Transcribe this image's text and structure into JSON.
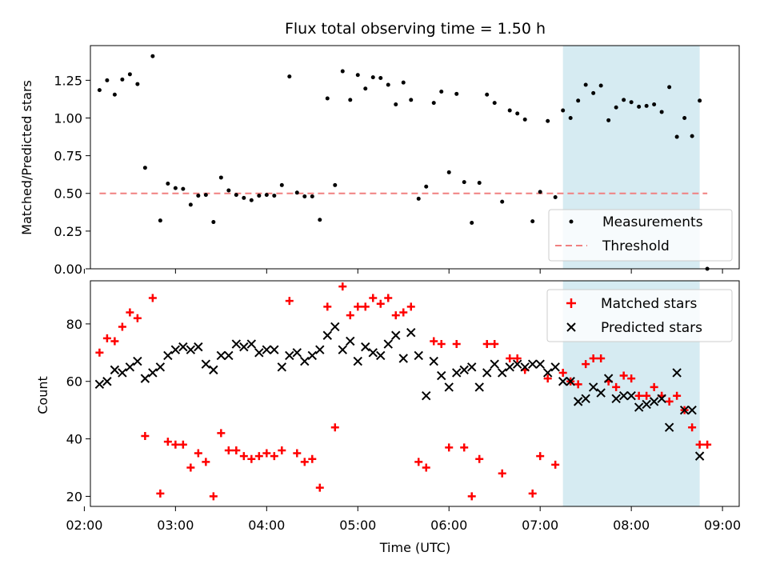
{
  "chart_data": [
    {
      "type": "scatter",
      "title": "Flux total observing time = 1.50 h",
      "xlabel": "",
      "ylabel": "Matched/Predicted stars",
      "xlim": [
        "02:04",
        "09:11"
      ],
      "ylim": [
        0.0,
        1.48
      ],
      "x_tick_labels": [
        "02:00",
        "03:00",
        "04:00",
        "05:00",
        "06:00",
        "07:00",
        "08:00",
        "09:00"
      ],
      "y_ticks": [
        0.0,
        0.25,
        0.5,
        0.75,
        1.0,
        1.25
      ],
      "y_tick_labels": [
        "0.00",
        "0.25",
        "0.50",
        "0.75",
        "1.00",
        "1.25"
      ],
      "shaded_span": [
        "07:15",
        "08:45"
      ],
      "legend": {
        "placement": "lower right",
        "entries": [
          "Measurements",
          "Threshold"
        ]
      },
      "series": [
        {
          "name": "Measurements",
          "marker": "dot",
          "color": "#000000",
          "points": [
            [
              "02:10",
              1.185
            ],
            [
              "02:15",
              1.25
            ],
            [
              "02:20",
              1.155
            ],
            [
              "02:25",
              1.255
            ],
            [
              "02:30",
              1.29
            ],
            [
              "02:35",
              1.225
            ],
            [
              "02:40",
              0.67
            ],
            [
              "02:45",
              1.41
            ],
            [
              "02:50",
              0.32
            ],
            [
              "02:55",
              0.565
            ],
            [
              "03:00",
              0.535
            ],
            [
              "03:05",
              0.53
            ],
            [
              "03:10",
              0.425
            ],
            [
              "03:15",
              0.485
            ],
            [
              "03:20",
              0.49
            ],
            [
              "03:25",
              0.31
            ],
            [
              "03:30",
              0.605
            ],
            [
              "03:35",
              0.52
            ],
            [
              "03:40",
              0.49
            ],
            [
              "03:45",
              0.47
            ],
            [
              "03:50",
              0.455
            ],
            [
              "03:55",
              0.485
            ],
            [
              "04:00",
              0.49
            ],
            [
              "04:05",
              0.485
            ],
            [
              "04:10",
              0.555
            ],
            [
              "04:15",
              1.275
            ],
            [
              "04:20",
              0.505
            ],
            [
              "04:25",
              0.48
            ],
            [
              "04:30",
              0.48
            ],
            [
              "04:35",
              0.325
            ],
            [
              "04:40",
              1.13
            ],
            [
              "04:45",
              0.555
            ],
            [
              "04:50",
              1.31
            ],
            [
              "04:55",
              1.12
            ],
            [
              "05:00",
              1.285
            ],
            [
              "05:05",
              1.195
            ],
            [
              "05:10",
              1.27
            ],
            [
              "05:15",
              1.265
            ],
            [
              "05:20",
              1.22
            ],
            [
              "05:25",
              1.09
            ],
            [
              "05:30",
              1.235
            ],
            [
              "05:35",
              1.12
            ],
            [
              "05:40",
              0.465
            ],
            [
              "05:45",
              0.545
            ],
            [
              "05:50",
              1.1
            ],
            [
              "05:55",
              1.175
            ],
            [
              "06:00",
              0.64
            ],
            [
              "06:05",
              1.16
            ],
            [
              "06:10",
              0.575
            ],
            [
              "06:15",
              0.305
            ],
            [
              "06:20",
              0.57
            ],
            [
              "06:25",
              1.155
            ],
            [
              "06:30",
              1.1
            ],
            [
              "06:35",
              0.445
            ],
            [
              "06:40",
              1.05
            ],
            [
              "06:45",
              1.03
            ],
            [
              "06:50",
              0.99
            ],
            [
              "06:55",
              0.315
            ],
            [
              "07:00",
              0.51
            ],
            [
              "07:05",
              0.98
            ],
            [
              "07:10",
              0.475
            ],
            [
              "07:15",
              1.05
            ],
            [
              "07:20",
              1.0
            ],
            [
              "07:25",
              1.115
            ],
            [
              "07:30",
              1.22
            ],
            [
              "07:35",
              1.165
            ],
            [
              "07:40",
              1.215
            ],
            [
              "07:45",
              0.985
            ],
            [
              "07:50",
              1.07
            ],
            [
              "07:55",
              1.12
            ],
            [
              "08:00",
              1.105
            ],
            [
              "08:05",
              1.075
            ],
            [
              "08:10",
              1.08
            ],
            [
              "08:15",
              1.09
            ],
            [
              "08:20",
              1.04
            ],
            [
              "08:25",
              1.205
            ],
            [
              "08:30",
              0.875
            ],
            [
              "08:35",
              1.0
            ],
            [
              "08:40",
              0.88
            ],
            [
              "08:45",
              1.115
            ],
            [
              "08:50",
              0.0
            ]
          ]
        },
        {
          "name": "Threshold",
          "line_style": "dashed",
          "color": "#f08080",
          "points": [
            [
              "02:10",
              0.5
            ],
            [
              "08:50",
              0.5
            ]
          ]
        }
      ]
    },
    {
      "type": "scatter",
      "title": "",
      "xlabel": "Time (UTC)",
      "ylabel": "Count",
      "xlim": [
        "02:04",
        "09:11"
      ],
      "ylim": [
        16.5,
        95
      ],
      "x_tick_labels": [
        "02:00",
        "03:00",
        "04:00",
        "05:00",
        "06:00",
        "07:00",
        "08:00",
        "09:00"
      ],
      "y_ticks": [
        20,
        40,
        60,
        80
      ],
      "y_tick_labels": [
        "20",
        "40",
        "60",
        "80"
      ],
      "shaded_span": [
        "07:15",
        "08:45"
      ],
      "legend": {
        "placement": "upper right",
        "entries": [
          "Matched stars",
          "Predicted stars"
        ]
      },
      "series": [
        {
          "name": "Matched stars",
          "marker": "plus",
          "color": "#ff0000",
          "points": [
            [
              "02:10",
              70
            ],
            [
              "02:15",
              75
            ],
            [
              "02:20",
              74
            ],
            [
              "02:25",
              79
            ],
            [
              "02:30",
              84
            ],
            [
              "02:35",
              82
            ],
            [
              "02:40",
              41
            ],
            [
              "02:45",
              89
            ],
            [
              "02:50",
              21
            ],
            [
              "02:55",
              39
            ],
            [
              "03:00",
              38
            ],
            [
              "03:05",
              38
            ],
            [
              "03:10",
              30
            ],
            [
              "03:15",
              35
            ],
            [
              "03:20",
              32
            ],
            [
              "03:25",
              20
            ],
            [
              "03:30",
              42
            ],
            [
              "03:35",
              36
            ],
            [
              "03:40",
              36
            ],
            [
              "03:45",
              34
            ],
            [
              "03:50",
              33
            ],
            [
              "03:55",
              34
            ],
            [
              "04:00",
              35
            ],
            [
              "04:05",
              34
            ],
            [
              "04:10",
              36
            ],
            [
              "04:15",
              88
            ],
            [
              "04:20",
              35
            ],
            [
              "04:25",
              32
            ],
            [
              "04:30",
              33
            ],
            [
              "04:35",
              23
            ],
            [
              "04:40",
              86
            ],
            [
              "04:45",
              44
            ],
            [
              "04:50",
              93
            ],
            [
              "04:55",
              83
            ],
            [
              "05:00",
              86
            ],
            [
              "05:05",
              86
            ],
            [
              "05:10",
              89
            ],
            [
              "05:15",
              87
            ],
            [
              "05:20",
              89
            ],
            [
              "05:25",
              83
            ],
            [
              "05:30",
              84
            ],
            [
              "05:35",
              86
            ],
            [
              "05:40",
              32
            ],
            [
              "05:45",
              30
            ],
            [
              "05:50",
              74
            ],
            [
              "05:55",
              73
            ],
            [
              "06:00",
              37
            ],
            [
              "06:05",
              73
            ],
            [
              "06:10",
              37
            ],
            [
              "06:15",
              20
            ],
            [
              "06:20",
              33
            ],
            [
              "06:25",
              73
            ],
            [
              "06:30",
              73
            ],
            [
              "06:35",
              28
            ],
            [
              "06:40",
              68
            ],
            [
              "06:45",
              68
            ],
            [
              "06:50",
              64
            ],
            [
              "06:55",
              21
            ],
            [
              "07:00",
              34
            ],
            [
              "07:05",
              61
            ],
            [
              "07:10",
              31
            ],
            [
              "07:15",
              63
            ],
            [
              "07:20",
              60
            ],
            [
              "07:25",
              59
            ],
            [
              "07:30",
              66
            ],
            [
              "07:35",
              68
            ],
            [
              "07:40",
              68
            ],
            [
              "07:45",
              60
            ],
            [
              "07:50",
              58
            ],
            [
              "07:55",
              62
            ],
            [
              "08:00",
              61
            ],
            [
              "08:05",
              55
            ],
            [
              "08:10",
              55
            ],
            [
              "08:15",
              58
            ],
            [
              "08:20",
              55
            ],
            [
              "08:25",
              53
            ],
            [
              "08:30",
              55
            ],
            [
              "08:35",
              50
            ],
            [
              "08:40",
              44
            ],
            [
              "08:45",
              38
            ],
            [
              "08:50",
              38
            ]
          ]
        },
        {
          "name": "Predicted stars",
          "marker": "x",
          "color": "#000000",
          "points": [
            [
              "02:10",
              59
            ],
            [
              "02:15",
              60
            ],
            [
              "02:20",
              64
            ],
            [
              "02:25",
              63
            ],
            [
              "02:30",
              65
            ],
            [
              "02:35",
              67
            ],
            [
              "02:40",
              61
            ],
            [
              "02:45",
              63
            ],
            [
              "02:50",
              65
            ],
            [
              "02:55",
              69
            ],
            [
              "03:00",
              71
            ],
            [
              "03:05",
              72
            ],
            [
              "03:10",
              71
            ],
            [
              "03:15",
              72
            ],
            [
              "03:20",
              66
            ],
            [
              "03:25",
              64
            ],
            [
              "03:30",
              69
            ],
            [
              "03:35",
              69
            ],
            [
              "03:40",
              73
            ],
            [
              "03:45",
              72
            ],
            [
              "03:50",
              73
            ],
            [
              "03:55",
              70
            ],
            [
              "04:00",
              71
            ],
            [
              "04:05",
              71
            ],
            [
              "04:10",
              65
            ],
            [
              "04:15",
              69
            ],
            [
              "04:20",
              70
            ],
            [
              "04:25",
              67
            ],
            [
              "04:30",
              69
            ],
            [
              "04:35",
              71
            ],
            [
              "04:40",
              76
            ],
            [
              "04:45",
              79
            ],
            [
              "04:50",
              71
            ],
            [
              "04:55",
              74
            ],
            [
              "05:00",
              67
            ],
            [
              "05:05",
              72
            ],
            [
              "05:10",
              70
            ],
            [
              "05:15",
              69
            ],
            [
              "05:20",
              73
            ],
            [
              "05:25",
              76
            ],
            [
              "05:30",
              68
            ],
            [
              "05:35",
              77
            ],
            [
              "05:40",
              69
            ],
            [
              "05:45",
              55
            ],
            [
              "05:50",
              67
            ],
            [
              "05:55",
              62
            ],
            [
              "06:00",
              58
            ],
            [
              "06:05",
              63
            ],
            [
              "06:10",
              64
            ],
            [
              "06:15",
              65
            ],
            [
              "06:20",
              58
            ],
            [
              "06:25",
              63
            ],
            [
              "06:30",
              66
            ],
            [
              "06:35",
              63
            ],
            [
              "06:40",
              65
            ],
            [
              "06:45",
              66
            ],
            [
              "06:50",
              65
            ],
            [
              "06:55",
              66
            ],
            [
              "07:00",
              66
            ],
            [
              "07:05",
              63
            ],
            [
              "07:10",
              65
            ],
            [
              "07:15",
              60
            ],
            [
              "07:20",
              60
            ],
            [
              "07:25",
              53
            ],
            [
              "07:30",
              54
            ],
            [
              "07:35",
              58
            ],
            [
              "07:40",
              56
            ],
            [
              "07:45",
              61
            ],
            [
              "07:50",
              54
            ],
            [
              "07:55",
              55
            ],
            [
              "08:00",
              55
            ],
            [
              "08:05",
              51
            ],
            [
              "08:10",
              52
            ],
            [
              "08:15",
              53
            ],
            [
              "08:20",
              54
            ],
            [
              "08:25",
              44
            ],
            [
              "08:30",
              63
            ],
            [
              "08:35",
              50
            ],
            [
              "08:40",
              50
            ],
            [
              "08:45",
              34
            ]
          ]
        }
      ]
    }
  ]
}
